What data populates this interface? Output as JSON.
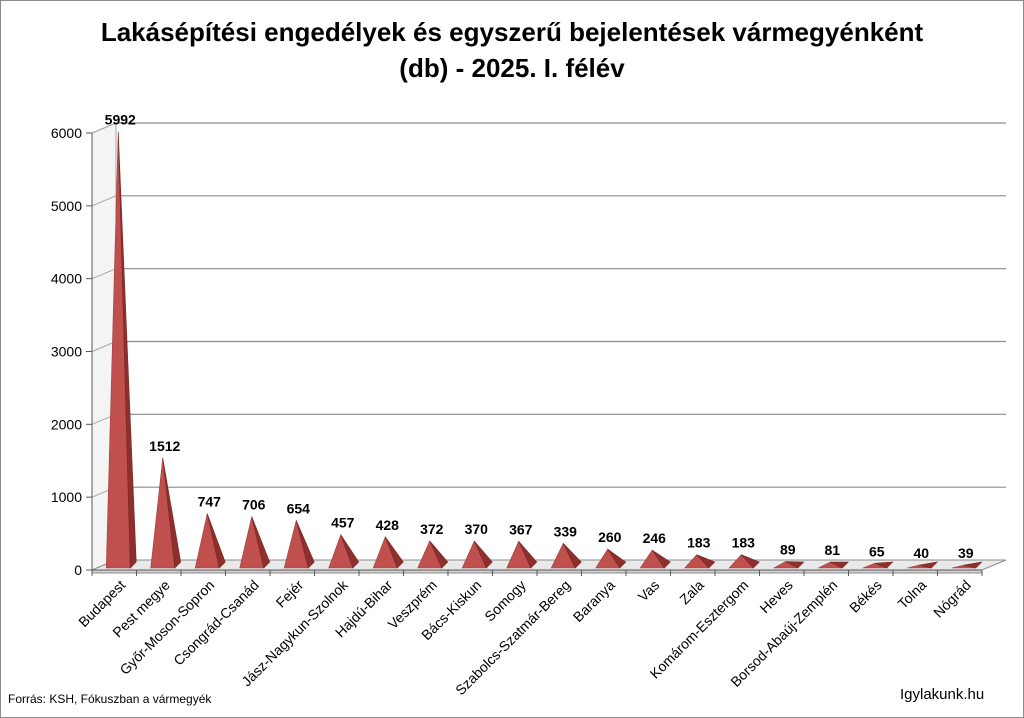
{
  "chart_data": {
    "type": "bar",
    "title_line1": "Lakásépítési engedélyek és egyszerű bejelentések vármegyénként",
    "title_line2": "(db) - 2025. I. félév",
    "xlabel": "",
    "ylabel": "",
    "ylim": [
      0,
      6000
    ],
    "yticks": [
      0,
      1000,
      2000,
      3000,
      4000,
      5000,
      6000
    ],
    "grid": true,
    "legend": "none",
    "shape": "3d-pyramid",
    "color": "#c0504d",
    "categories": [
      "Budapest",
      "Pest megye",
      "Győr-Moson-Sopron",
      "Csongrád-Csanád",
      "Fejér",
      "Jász-Nagykun-Szolnok",
      "Hajdú-Bihar",
      "Veszprém",
      "Bács-Kiskun",
      "Somogy",
      "Szabolcs-Szatmár-Bereg",
      "Baranya",
      "Vas",
      "Zala",
      "Komárom-Esztergom",
      "Heves",
      "Borsod-Abaúj-Zemplén",
      "Békés",
      "Tolna",
      "Nógrád"
    ],
    "values": [
      5992,
      1512,
      747,
      706,
      654,
      457,
      428,
      372,
      370,
      367,
      339,
      260,
      246,
      183,
      183,
      89,
      81,
      65,
      40,
      39
    ]
  },
  "footer": {
    "source": "Forrás: KSH, Fókuszban a vármegyék",
    "brand": "Igylakunk.hu"
  }
}
